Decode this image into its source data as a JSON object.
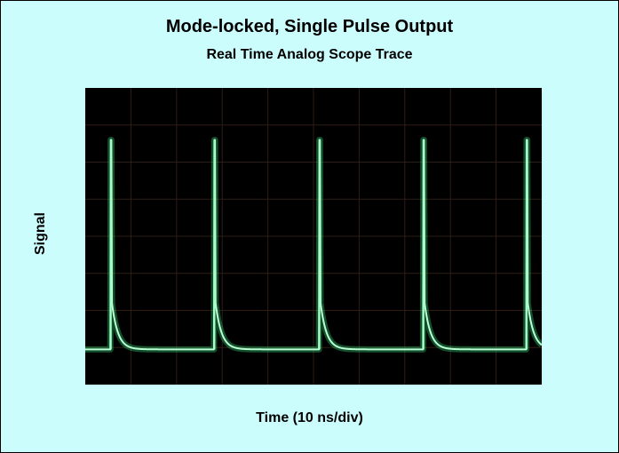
{
  "chart_data": {
    "type": "line",
    "title": "Mode-locked, Single Pulse Output",
    "subtitle": "Real Time Analog Scope Trace",
    "xlabel": "Time (10 ns/div)",
    "ylabel": "Signal",
    "x_per_div_ns": 10,
    "xlim_ns": [
      0,
      100
    ],
    "ylim": [
      0,
      8
    ],
    "grid": true,
    "background": "#000000",
    "trace_color": "#33e07a",
    "pulse_times_ns": [
      5.5,
      28.2,
      51.2,
      74.0,
      96.6
    ],
    "peak_level": 6.6,
    "baseline_level": 0.95,
    "shoulder_level": 2.2,
    "decay_time_ns": 1.3,
    "series": [
      {
        "values": [
          0.95,
          6.6,
          6.6,
          6.6,
          6.6,
          6.6
        ]
      }
    ]
  },
  "colors": {
    "panel": "#ccfdfd",
    "border": "#000000"
  }
}
